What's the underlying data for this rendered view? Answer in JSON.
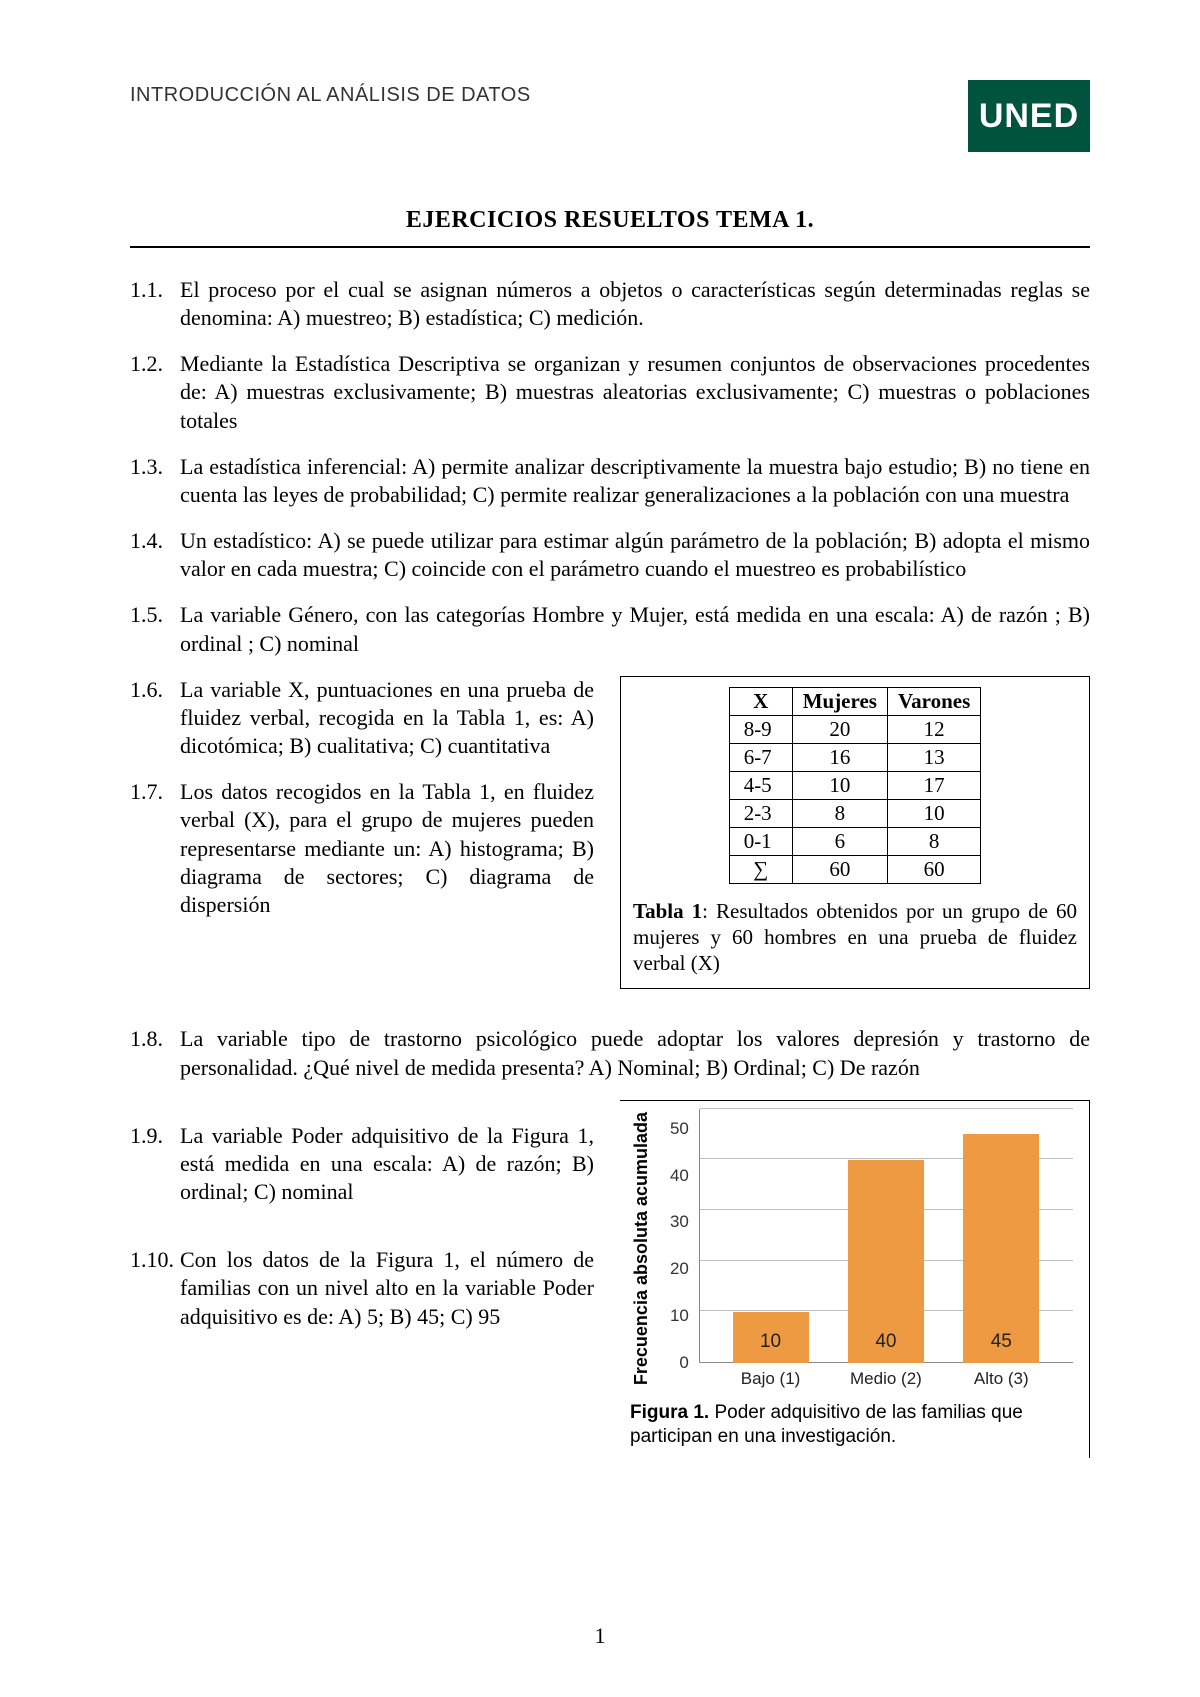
{
  "header": {
    "course": "INTRODUCCIÓN AL ANÁLISIS DE DATOS",
    "logo_text": "UNED",
    "logo_bg": "#00533e",
    "logo_fg": "#ffffff"
  },
  "title": "EJERCICIOS RESUELTOS   TEMA 1.",
  "questions": [
    {
      "num": "1.1.",
      "text": "El proceso por el cual se asignan números a objetos o características según determinadas reglas se denomina: A) muestreo;  B) estadística;  C) medición."
    },
    {
      "num": "1.2.",
      "text": "Mediante la Estadística Descriptiva se organizan y resumen conjuntos de observaciones procedentes de:  A) muestras exclusivamente;   B) muestras aleatorias exclusivamente;  C) muestras o poblaciones totales"
    },
    {
      "num": "1.3.",
      "text": "La estadística inferencial: A) permite analizar descriptivamente la muestra bajo estudio; B) no tiene en cuenta las leyes de probabilidad; C) permite realizar generalizaciones a la población con una muestra"
    },
    {
      "num": "1.4.",
      "text": "Un estadístico: A) se puede utilizar para estimar algún parámetro de la población;  B) adopta el mismo valor en cada muestra; C) coincide con el parámetro cuando el muestreo es probabilístico"
    },
    {
      "num": "1.5.",
      "text": "La variable Género, con las categorías Hombre y Mujer, está medida en una escala: A) de razón ; B) ordinal ; C) nominal"
    }
  ],
  "questions_with_table": [
    {
      "num": "1.6.",
      "text": "La variable X, puntuaciones en una prueba de fluidez verbal, recogida en la Tabla 1, es: A) dicotómica; B) cualitativa; C) cuantitativa"
    },
    {
      "num": "1.7.",
      "text": "Los datos recogidos en la Tabla 1, en fluidez verbal (X), para el grupo de mujeres pueden representarse mediante un: A) histograma; B) diagrama de sectores; C) diagrama de dispersión"
    }
  ],
  "table1": {
    "columns": [
      "X",
      "Mujeres",
      "Varones"
    ],
    "rows": [
      [
        "8-9",
        "20",
        "12"
      ],
      [
        "6-7",
        "16",
        "13"
      ],
      [
        "4-5",
        "10",
        "17"
      ],
      [
        "2-3",
        "8",
        "10"
      ],
      [
        "0-1",
        "6",
        "8"
      ],
      [
        "∑",
        "60",
        "60"
      ]
    ],
    "caption_label": "Tabla 1",
    "caption_text": ": Resultados obtenidos por un grupo de 60 mujeres y 60 hombres en una prueba de fluidez verbal (X)"
  },
  "question_8": {
    "num": "1.8.",
    "text": "La variable tipo de trastorno psicológico puede adoptar los valores depresión y trastorno de personalidad. ¿Qué nivel de medida presenta? A) Nominal; B) Ordinal;  C) De razón"
  },
  "questions_with_chart": [
    {
      "num": "1.9.",
      "text": "La variable Poder adquisitivo de la Figura 1, está medida en una escala: A) de razón; B) ordinal; C) nominal"
    },
    {
      "num": "1.10.",
      "text": "Con los datos de la Figura 1, el número de familias con un nivel alto en la variable Poder adquisitivo es de: A) 5; B) 45; C) 95"
    }
  ],
  "chart": {
    "type": "bar",
    "ylabel": "Frecuencia absoluta acumulada",
    "ylim": [
      0,
      50
    ],
    "yticks": [
      "0",
      "10",
      "20",
      "30",
      "40",
      "50"
    ],
    "categories": [
      "Bajo (1)",
      "Medio (2)",
      "Alto (3)"
    ],
    "values": [
      10,
      40,
      45
    ],
    "value_labels": [
      "10",
      "40",
      "45"
    ],
    "bar_color": "#ed9a43",
    "grid_color": "#bfbfbf",
    "axis_color": "#888888",
    "text_color": "#222222",
    "caption_label": "Figura 1.",
    "caption_text": " Poder adquisitivo de las familias que participan en una investigación."
  },
  "page_number": "1"
}
